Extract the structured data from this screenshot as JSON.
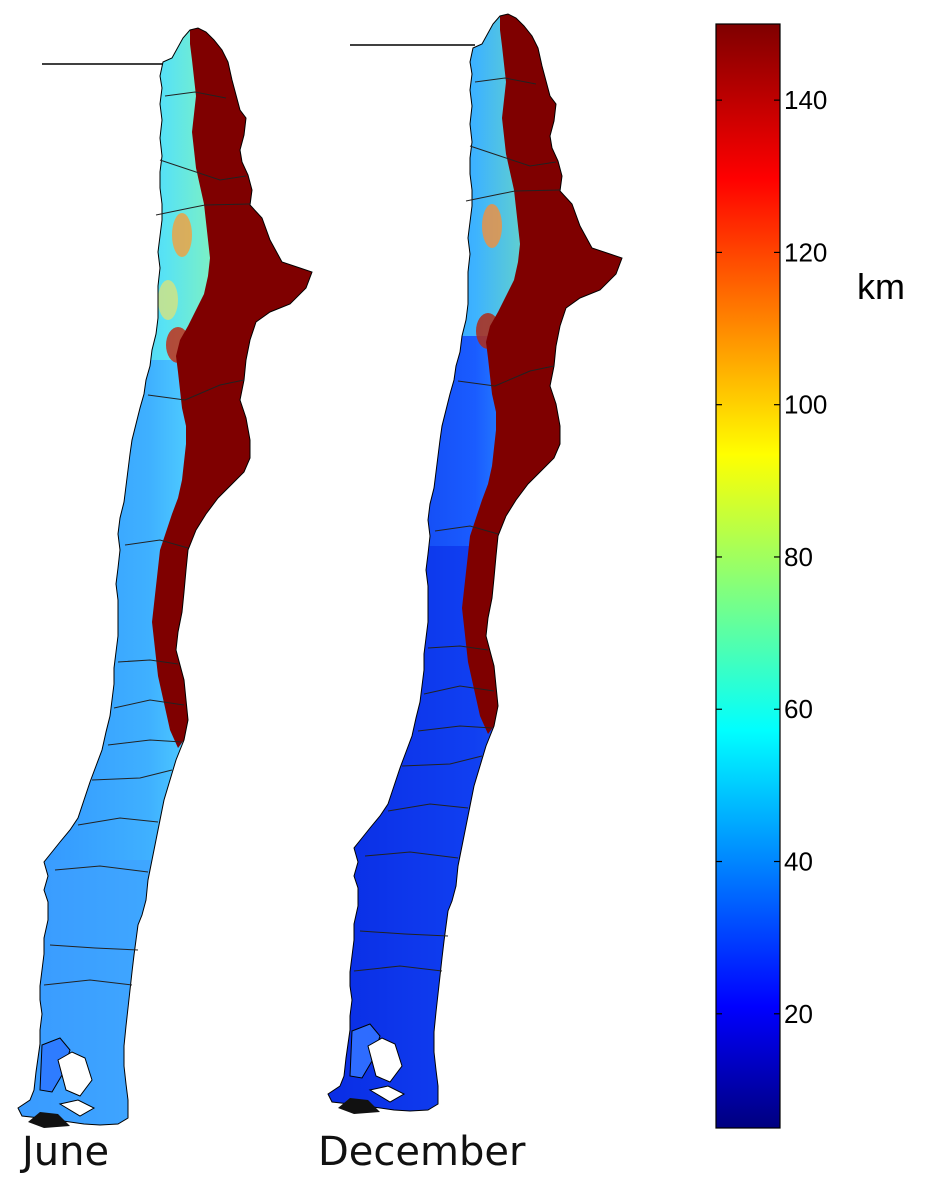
{
  "panels": [
    {
      "id": "june",
      "caption": "June"
    },
    {
      "id": "december",
      "caption": "December"
    }
  ],
  "colorbar": {
    "unit": "km",
    "range": [
      5,
      150
    ],
    "ticks": [
      20,
      40,
      60,
      80,
      100,
      120,
      140
    ],
    "tick_labels": [
      "20",
      "40",
      "60",
      "80",
      "100",
      "120",
      "140"
    ],
    "colormap": "jet",
    "colors": [
      "#00007f",
      "#0000ff",
      "#0080ff",
      "#00ffff",
      "#80ff80",
      "#ffff00",
      "#ff8000",
      "#ff0000",
      "#7f0000"
    ]
  }
}
